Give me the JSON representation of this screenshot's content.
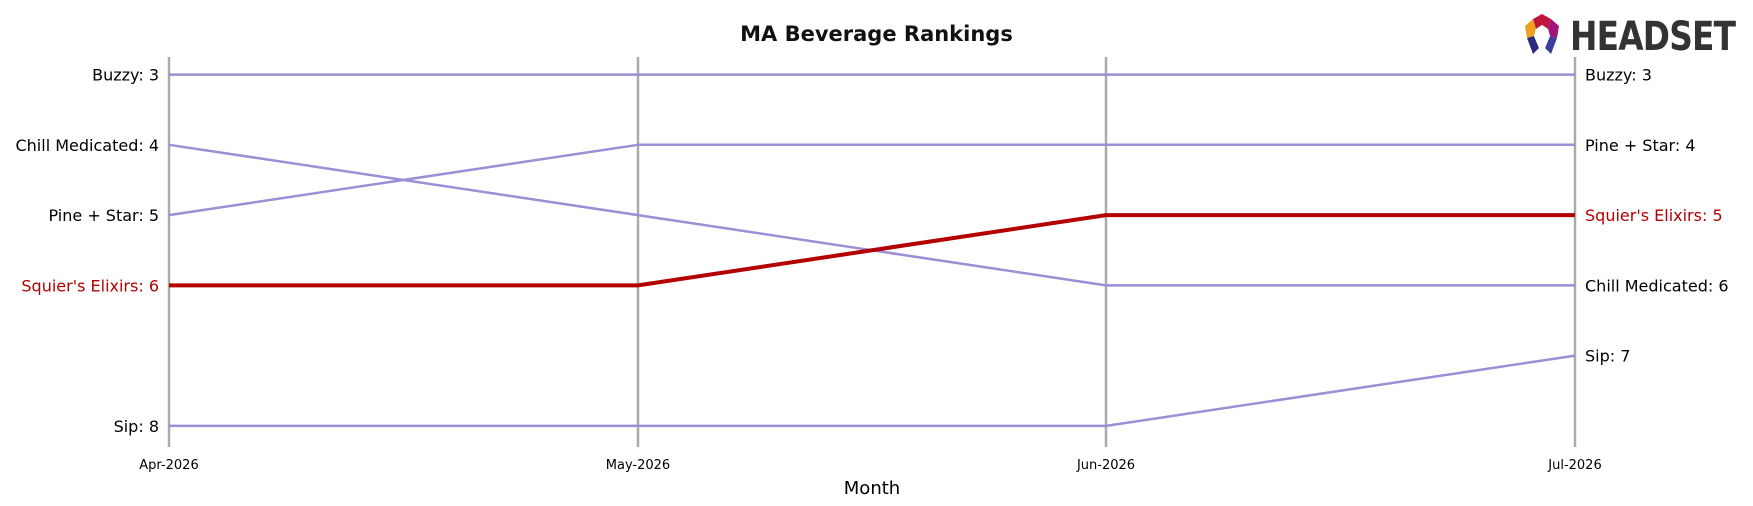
{
  "logo": {
    "text": "HEADSET"
  },
  "chart_data": {
    "type": "line",
    "title": "MA Beverage Rankings",
    "xlabel": "Month",
    "ylabel": "",
    "categories": [
      "Apr-2026",
      "May-2026",
      "Jun-2026",
      "Jul-2026"
    ],
    "ylim": [
      8.3,
      2.75
    ],
    "y_inverted": true,
    "grid": "vertical lines at each month",
    "highlight_color": "#b30000",
    "series_color": "#9b8fd6",
    "axis_line_color": "#aaaaaa",
    "series": [
      {
        "name": "Buzzy",
        "values": [
          3,
          3,
          3,
          3
        ],
        "highlight": false
      },
      {
        "name": "Chill Medicated",
        "values": [
          4,
          5,
          6,
          6
        ],
        "highlight": false
      },
      {
        "name": "Pine + Star",
        "values": [
          5,
          4,
          4,
          4
        ],
        "highlight": false
      },
      {
        "name": "Sip",
        "values": [
          8,
          8,
          8,
          7
        ],
        "highlight": false
      },
      {
        "name": "Squier's Elixirs",
        "values": [
          6,
          6,
          5,
          5
        ],
        "highlight": true
      }
    ],
    "left_labels": [
      {
        "series": "Buzzy",
        "text": "Buzzy: 3",
        "value": 3
      },
      {
        "series": "Chill Medicated",
        "text": "Chill Medicated: 4",
        "value": 4
      },
      {
        "series": "Pine + Star",
        "text": "Pine + Star: 5",
        "value": 5
      },
      {
        "series": "Squier's Elixirs",
        "text": "Squier's Elixirs: 6",
        "value": 6
      },
      {
        "series": "Sip",
        "text": "Sip: 8",
        "value": 8
      }
    ],
    "right_labels": [
      {
        "series": "Buzzy",
        "text": "Buzzy: 3",
        "value": 3
      },
      {
        "series": "Pine + Star",
        "text": "Pine + Star: 4",
        "value": 4
      },
      {
        "series": "Squier's Elixirs",
        "text": "Squier's Elixirs: 5",
        "value": 5
      },
      {
        "series": "Chill Medicated",
        "text": "Chill Medicated: 6",
        "value": 6
      },
      {
        "series": "Sip",
        "text": "Sip: 7",
        "value": 7
      }
    ]
  }
}
